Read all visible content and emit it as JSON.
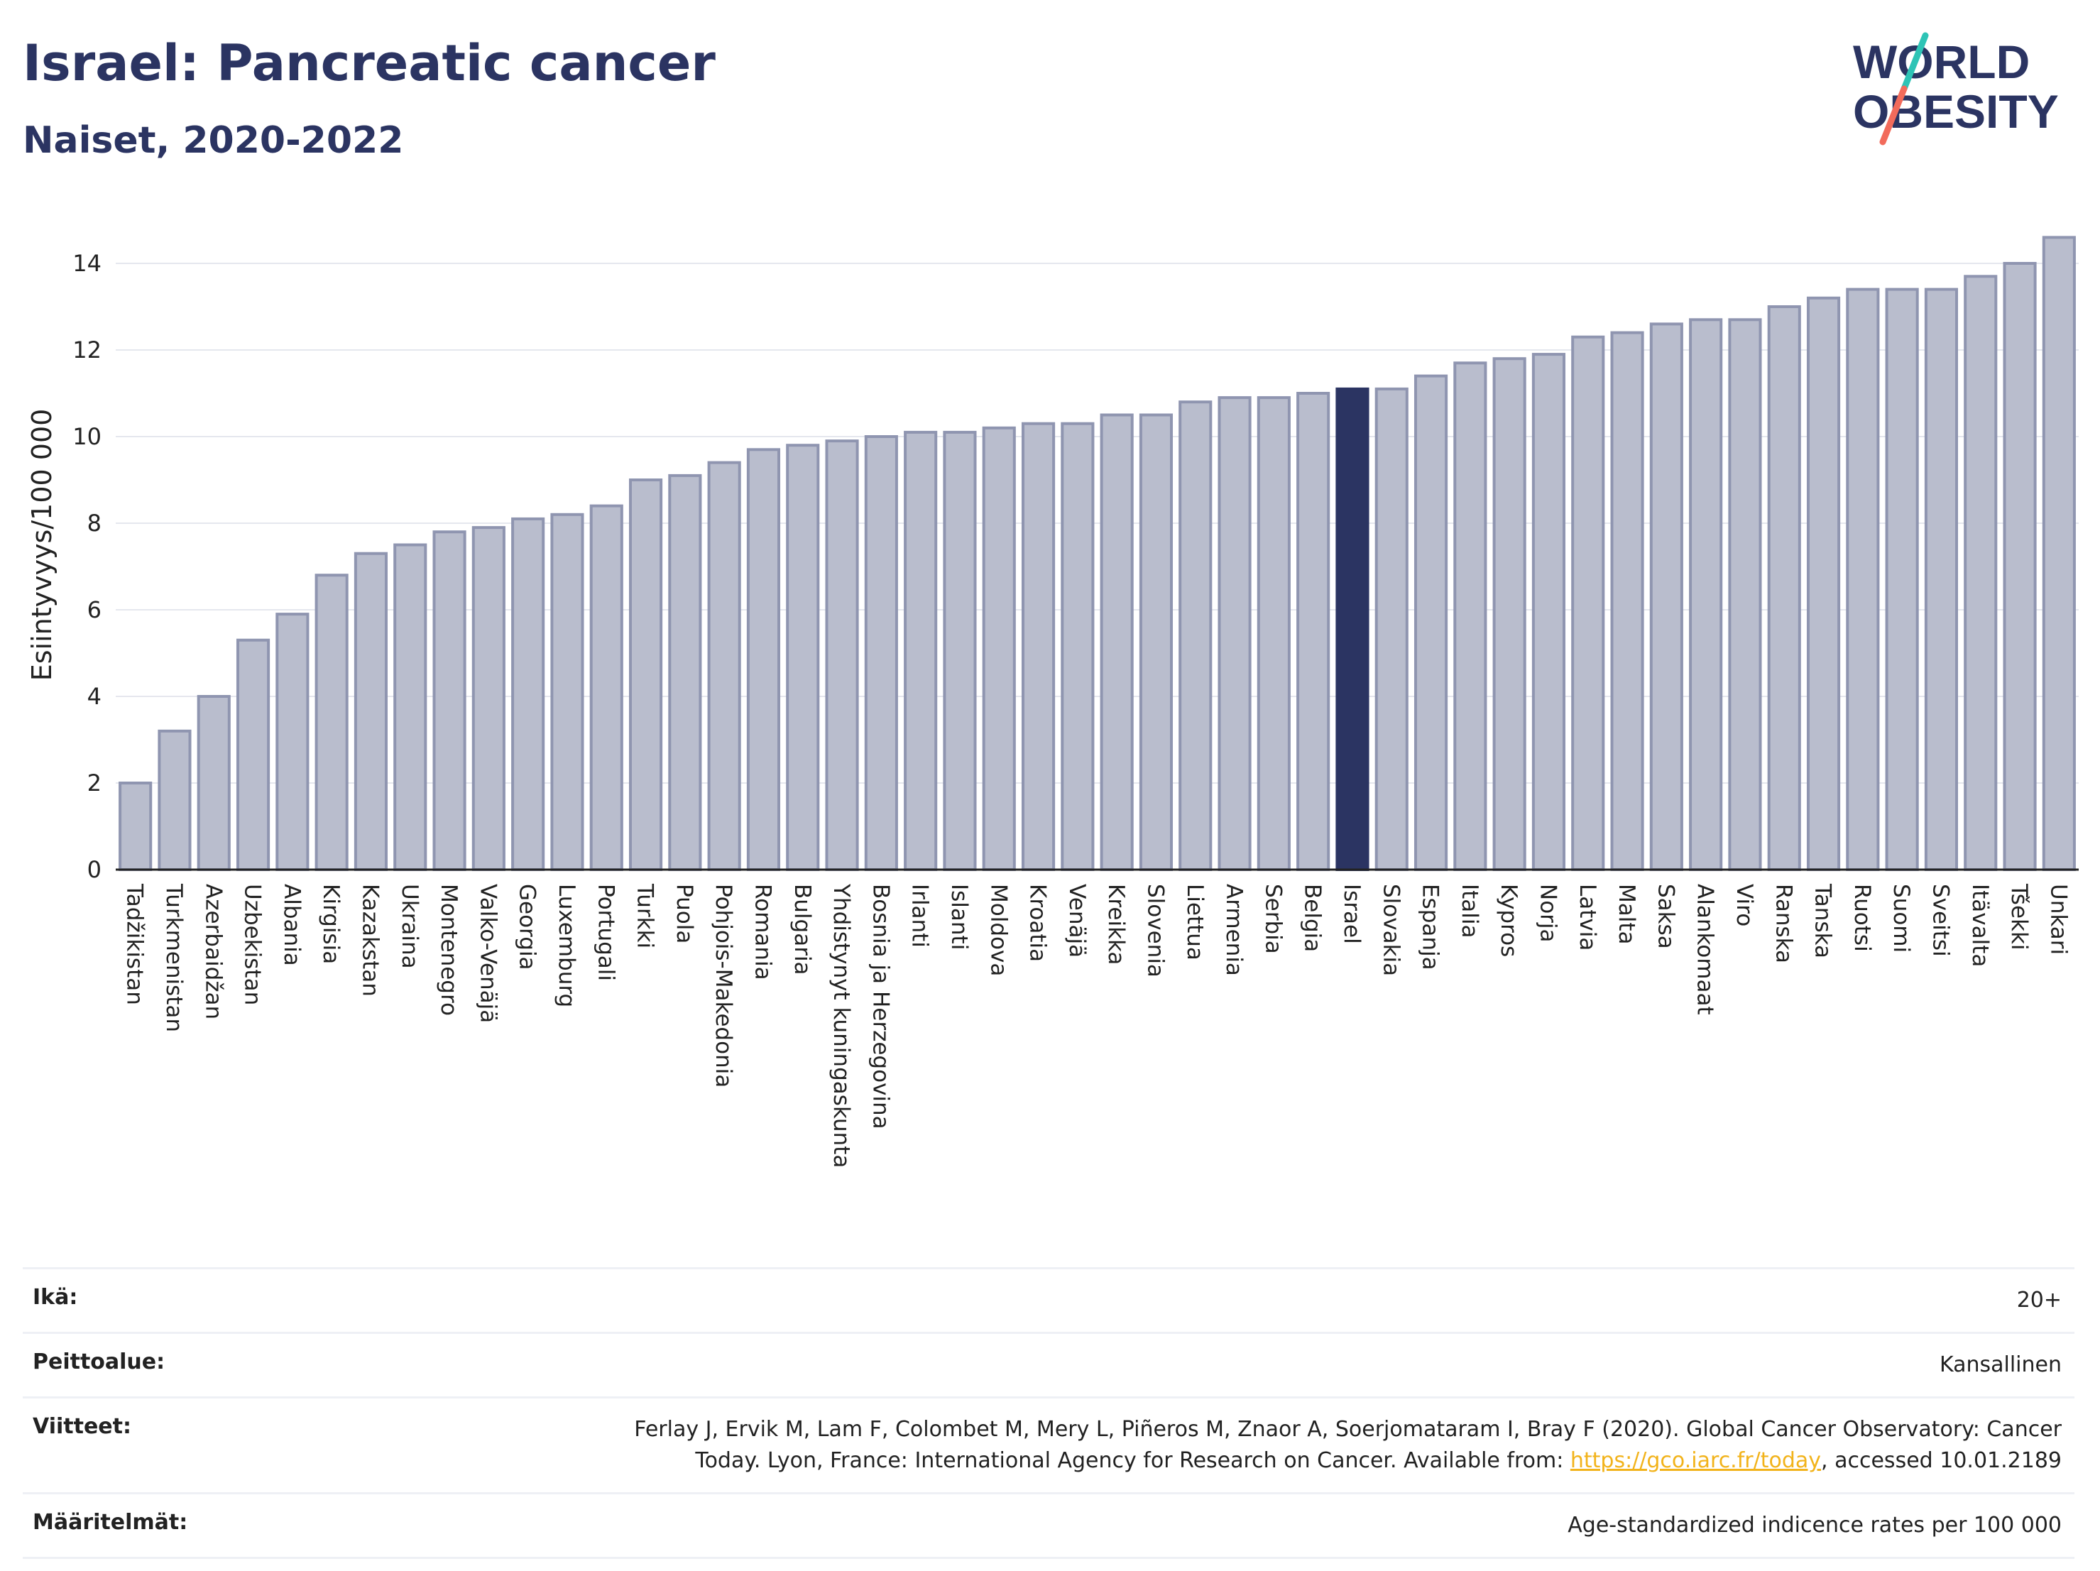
{
  "header": {
    "title": "Israel: Pancreatic cancer",
    "subtitle": "Naiset, 2020-2022"
  },
  "logo": {
    "line1": "WORLD",
    "line2": "OBESITY",
    "colors": {
      "text": "#2b3462",
      "slash_top": "#2ec4b6",
      "slash_bottom": "#f26b5b"
    }
  },
  "chart_data": {
    "type": "bar",
    "title": "Israel: Pancreatic cancer",
    "subtitle": "Naiset, 2020-2022",
    "xlabel": "",
    "ylabel": "Esiintyvyys/100 000",
    "ylim": [
      0,
      15
    ],
    "yticks": [
      0,
      2,
      4,
      6,
      8,
      10,
      12,
      14
    ],
    "grid": true,
    "highlight": "Israel",
    "colors": {
      "bar": "#b9bdcd",
      "bar_border": "#8f95b0",
      "highlight": "#2b3462",
      "grid": "#e5e7ee"
    },
    "categories": [
      "Tadžikistan",
      "Turkmenistan",
      "Azerbaidžan",
      "Uzbekistan",
      "Albania",
      "Kirgisia",
      "Kazakstan",
      "Ukraina",
      "Montenegro",
      "Valko-Venäjä",
      "Georgia",
      "Luxemburg",
      "Portugali",
      "Turkki",
      "Puola",
      "Pohjois-Makedonia",
      "Romania",
      "Bulgaria",
      "Yhdistynyt kuningaskunta",
      "Bosnia ja Herzegovina",
      "Irlanti",
      "Islanti",
      "Moldova",
      "Kroatia",
      "Venäjä",
      "Kreikka",
      "Slovenia",
      "Liettua",
      "Armenia",
      "Serbia",
      "Belgia",
      "Israel",
      "Slovakia",
      "Espanja",
      "Italia",
      "Kypros",
      "Norja",
      "Latvia",
      "Malta",
      "Saksa",
      "Alankomaat",
      "Viro",
      "Ranska",
      "Tanska",
      "Ruotsi",
      "Suomi",
      "Sveitsi",
      "Itävalta",
      "Tšekki",
      "Unkari"
    ],
    "values": [
      2.0,
      3.2,
      4.0,
      5.3,
      5.9,
      6.8,
      7.3,
      7.5,
      7.8,
      7.9,
      8.1,
      8.2,
      8.4,
      9.0,
      9.1,
      9.4,
      9.7,
      9.8,
      9.9,
      10.0,
      10.1,
      10.1,
      10.2,
      10.3,
      10.3,
      10.5,
      10.5,
      10.8,
      10.9,
      10.9,
      11.0,
      11.1,
      11.1,
      11.4,
      11.7,
      11.8,
      11.9,
      12.3,
      12.4,
      12.6,
      12.7,
      12.7,
      13.0,
      13.2,
      13.4,
      13.4,
      13.4,
      13.7,
      14.0,
      14.6
    ]
  },
  "meta": {
    "age_label": "Ikä:",
    "age_value": "20+",
    "coverage_label": "Peittoalue:",
    "coverage_value": "Kansallinen",
    "refs_label": "Viitteet:",
    "refs_line1": "Ferlay J, Ervik M, Lam F, Colombet M, Mery L, Piñeros M, Znaor A, Soerjomataram I, Bray F (2020). Global Cancer Observatory: Cancer",
    "refs_line2_pre": "Today. Lyon, France: International Agency for Research on Cancer. Available from: ",
    "refs_link": "https://gco.iarc.fr/today",
    "refs_line2_post": ", accessed 10.01.2189",
    "defs_label": "Määritelmät:",
    "defs_value": "Age-standardized indicence rates per 100 000"
  }
}
